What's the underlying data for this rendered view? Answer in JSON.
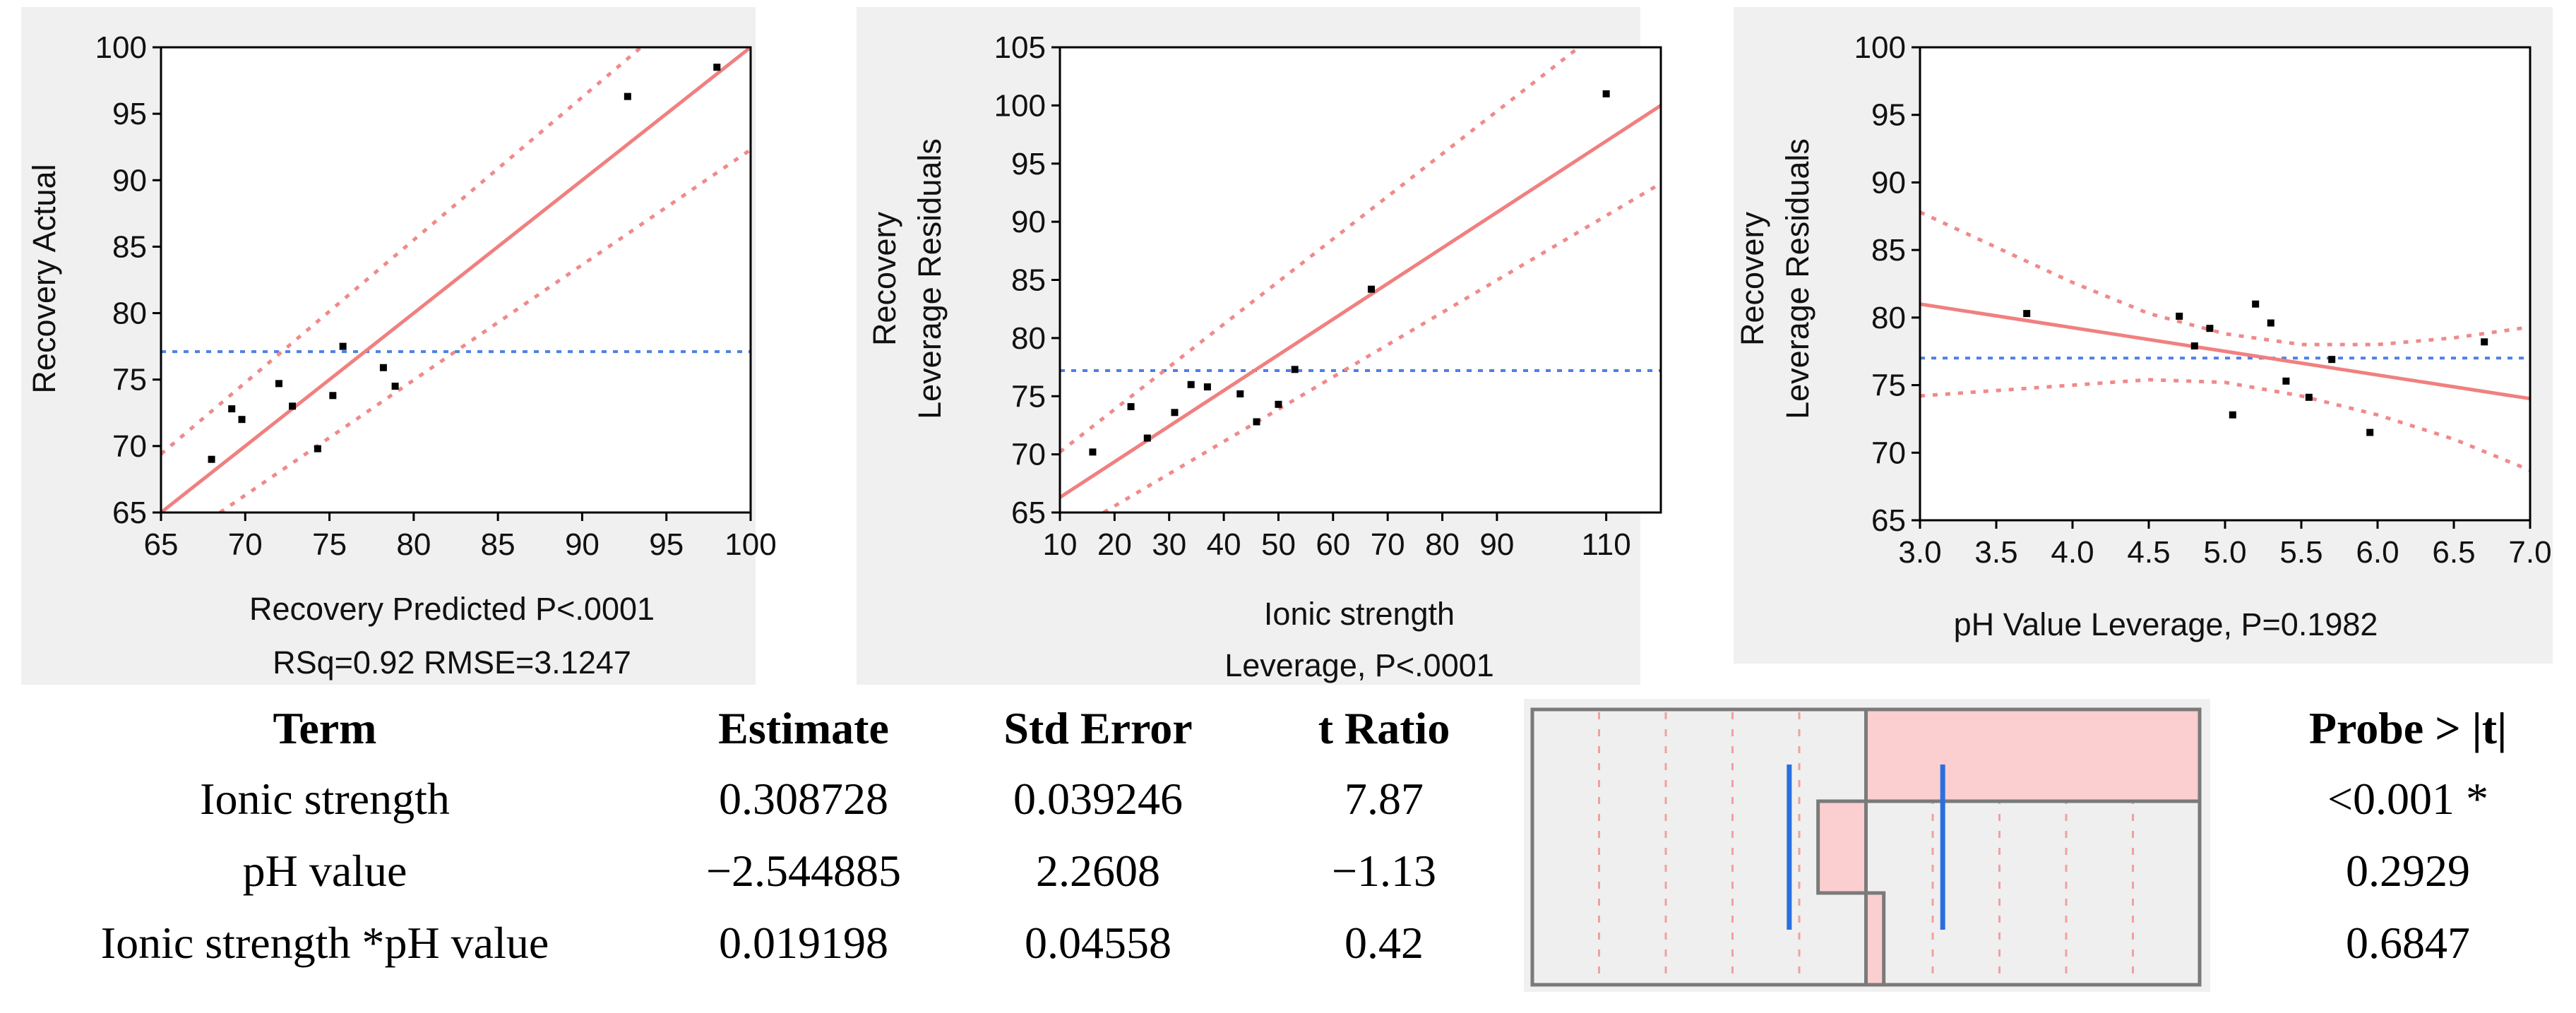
{
  "chart_data": [
    {
      "type": "scatter",
      "xlabel": "Recovery Predicted P<.0001",
      "subtitle": "RSq=0.92 RMSE=3.1247",
      "ylabel": "Recovery Actual",
      "xlim": [
        65,
        100
      ],
      "ylim": [
        65,
        100
      ],
      "xticks": [
        "65",
        "70",
        "75",
        "80",
        "85",
        "90",
        "95",
        "100"
      ],
      "yticks": [
        "65",
        "70",
        "75",
        "80",
        "85",
        "90",
        "95",
        "100"
      ],
      "mean_line": 77.1,
      "fit_line": [
        [
          65,
          65
        ],
        [
          100,
          100
        ]
      ],
      "conf_upper": [
        [
          65,
          69.4
        ],
        [
          93.5,
          100
        ]
      ],
      "conf_lower": [
        [
          68.5,
          65
        ],
        [
          100,
          92.3
        ]
      ],
      "points": [
        [
          68.0,
          69.0
        ],
        [
          69.2,
          72.8
        ],
        [
          69.8,
          72.0
        ],
        [
          72.0,
          74.7
        ],
        [
          72.8,
          73.0
        ],
        [
          74.3,
          69.8
        ],
        [
          75.2,
          73.8
        ],
        [
          75.8,
          77.5
        ],
        [
          78.2,
          75.9
        ],
        [
          78.9,
          74.5
        ],
        [
          92.7,
          96.3
        ],
        [
          98.0,
          98.5
        ]
      ]
    },
    {
      "type": "scatter",
      "xlabel": "Ionic strength",
      "subtitle": "Leverage, P<.0001",
      "ylabel": "Recovery",
      "ylabel2": "Leverage Residuals",
      "xlim": [
        10,
        120
      ],
      "ylim": [
        65,
        105
      ],
      "xticks": [
        "10",
        "20",
        "30",
        "40",
        "50",
        "60",
        "70",
        "80",
        "90",
        "110"
      ],
      "yticks": [
        "65",
        "70",
        "75",
        "80",
        "85",
        "90",
        "95",
        "100",
        "105"
      ],
      "mean_line": 77.2,
      "fit_line": [
        [
          10,
          66.3
        ],
        [
          120,
          100
        ]
      ],
      "conf_upper": [
        [
          10,
          70.2
        ],
        [
          105,
          105
        ]
      ],
      "conf_lower": [
        [
          18,
          65
        ],
        [
          120,
          93.3
        ]
      ],
      "points": [
        [
          16,
          70.2
        ],
        [
          23,
          74.1
        ],
        [
          26,
          71.4
        ],
        [
          31,
          73.6
        ],
        [
          34,
          76.0
        ],
        [
          37,
          75.8
        ],
        [
          43,
          75.2
        ],
        [
          46,
          72.8
        ],
        [
          50,
          74.3
        ],
        [
          53,
          77.3
        ],
        [
          67,
          84.2
        ],
        [
          110,
          101.0
        ]
      ]
    },
    {
      "type": "scatter",
      "xlabel": "pH Value Leverage, P=0.1982",
      "ylabel": "Recovery",
      "ylabel2": "Leverage Residuals",
      "xlim": [
        3.0,
        7.0
      ],
      "ylim": [
        65,
        100
      ],
      "xticks": [
        "3.0",
        "3.5",
        "4.0",
        "4.5",
        "5.0",
        "5.5",
        "6.0",
        "6.5",
        "7.0"
      ],
      "yticks": [
        "65",
        "70",
        "75",
        "80",
        "85",
        "90",
        "95",
        "100"
      ],
      "mean_line": 77.0,
      "fit_line": [
        [
          3.0,
          81.0
        ],
        [
          7.0,
          74.0
        ]
      ],
      "conf_upper": [
        [
          3.0,
          87.8
        ],
        [
          3.5,
          85.2
        ],
        [
          4.0,
          82.6
        ],
        [
          4.5,
          80.3
        ],
        [
          5.0,
          78.8
        ],
        [
          5.5,
          78.0
        ],
        [
          6.0,
          78.0
        ],
        [
          6.5,
          78.5
        ],
        [
          7.0,
          79.3
        ]
      ],
      "conf_lower": [
        [
          3.0,
          74.2
        ],
        [
          3.5,
          74.6
        ],
        [
          4.0,
          75.0
        ],
        [
          4.5,
          75.4
        ],
        [
          5.0,
          75.2
        ],
        [
          5.5,
          74.2
        ],
        [
          6.0,
          72.8
        ],
        [
          6.5,
          71.0
        ],
        [
          7.0,
          68.7
        ]
      ],
      "points": [
        [
          3.7,
          80.3
        ],
        [
          4.7,
          80.1
        ],
        [
          4.8,
          77.9
        ],
        [
          4.9,
          79.2
        ],
        [
          5.05,
          72.8
        ],
        [
          5.2,
          81.0
        ],
        [
          5.3,
          79.6
        ],
        [
          5.4,
          75.3
        ],
        [
          5.55,
          74.1
        ],
        [
          5.7,
          76.9
        ],
        [
          5.95,
          71.5
        ],
        [
          6.7,
          78.2
        ]
      ]
    }
  ],
  "table": {
    "headers": [
      "Term",
      "Estimate",
      "Std Error",
      "t Ratio"
    ],
    "probe_header": "Probe > |t|",
    "rows": [
      {
        "term": "Ionic strength",
        "estimate": "0.308728",
        "std_error": "0.039246",
        "t_ratio": "7.87",
        "probe": "<0.001 *",
        "t_value": 7.87
      },
      {
        "term": "pH value",
        "estimate": "−2.544885",
        "std_error": "2.2608",
        "t_ratio": "−1.13",
        "probe": "0.2929",
        "t_value": -1.13
      },
      {
        "term": "Ionic strength *pH value",
        "estimate": "0.019198",
        "std_error": "0.04558",
        "t_ratio": "0.42",
        "probe": "0.6847",
        "t_value": 0.42
      }
    ]
  },
  "colors": {
    "panel_bg": "#f0f0f0",
    "fit": "#f08080",
    "conf": "#f08a8a",
    "mean": "#4d7fe6",
    "bar_fill": "#fbcfcf",
    "bar_guide": "#2a6fe0",
    "point": "#000000"
  }
}
